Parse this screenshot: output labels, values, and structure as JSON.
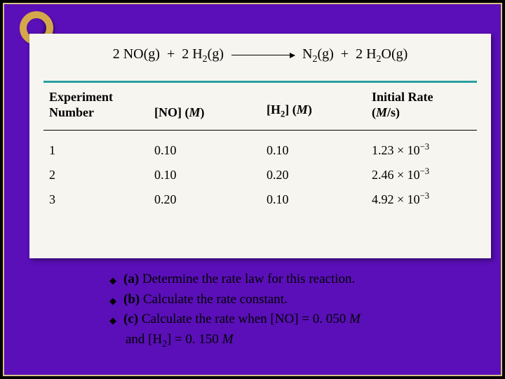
{
  "equation": {
    "lhs1_coef": "2",
    "lhs1": "NO(g)",
    "plus1": "+",
    "lhs2_coef": "2",
    "lhs2_a": "H",
    "lhs2_sub": "2",
    "lhs2_b": "(g)",
    "rhs1_a": "N",
    "rhs1_sub": "2",
    "rhs1_b": "(g)",
    "plus2": "+",
    "rhs2_coef": "2",
    "rhs2_a": "H",
    "rhs2_sub1": "2",
    "rhs2_b": "O(g)"
  },
  "table": {
    "headers": {
      "col1a": "Experiment",
      "col1b": "Number",
      "col2a": "[NO] (",
      "col2b": "M",
      "col2c": ")",
      "col3a": "[H",
      "col3sub": "2",
      "col3b": "] (",
      "col3c": "M",
      "col3d": ")",
      "col4a": "Initial Rate",
      "col4b": "(",
      "col4c": "M",
      "col4d": "/s)"
    },
    "rows": [
      {
        "n": "1",
        "no": "0.10",
        "h2": "0.10",
        "rate_m": "1.23",
        "rate_e": "−3"
      },
      {
        "n": "2",
        "no": "0.10",
        "h2": "0.20",
        "rate_m": "2.46",
        "rate_e": "−3"
      },
      {
        "n": "3",
        "no": "0.20",
        "h2": "0.10",
        "rate_m": "4.92",
        "rate_e": "−3"
      }
    ]
  },
  "questions": {
    "a_label": "(a)",
    "a_text": " Determine the rate law for this reaction.",
    "b_label": "(b)",
    "b_text": " Calculate the rate constant.",
    "c_label": "(c)",
    "c_text1": " Calculate the rate when [NO] = 0. 050 ",
    "c_M1": "M",
    "c_line2a": "and [H",
    "c_sub": "2",
    "c_line2b": "] =  0. 150 ",
    "c_M2": "M"
  },
  "style": {
    "slide_bg": "#5a0fb8",
    "panel_bg": "#f7f5ef",
    "border_color": "#d4c388",
    "rule_color": "#2aa0a0",
    "key_color": "#d4a84a"
  }
}
